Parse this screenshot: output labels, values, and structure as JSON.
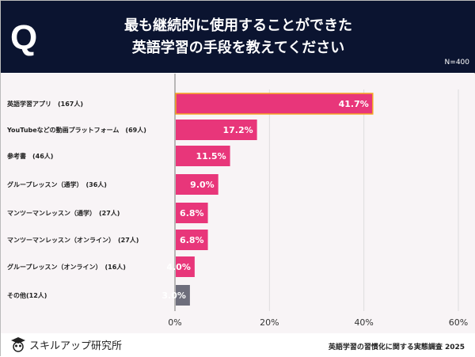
{
  "header": {
    "q_mark": "Q",
    "title_line1": "最も継続的に使用することができた",
    "title_line2": "英語学習の手段を教えてください",
    "sample": "N=400"
  },
  "chart_data": {
    "type": "bar",
    "orientation": "horizontal",
    "categories": [
      "英語学習アプリ　(167人)",
      "YouTubeなどの動画プラットフォーム　(69人)",
      "参考書　(46人)",
      "グループレッスン（通学）　(36人)",
      "マンツーマンレッスン（通学）　(27人)",
      "マンツーマンレッスン（オンライン）　(27人)",
      "グループレッスン（オンライン）　(16人)",
      "その他(12人)"
    ],
    "values": [
      41.7,
      17.2,
      11.5,
      9.0,
      6.8,
      6.8,
      4.0,
      3.0
    ],
    "value_labels": [
      "41.7%",
      "17.2%",
      "11.5%",
      "9.0%",
      "6.8%",
      "6.8%",
      "4.0%",
      "3.0%"
    ],
    "xlim": [
      0,
      60
    ],
    "x_ticks": [
      "0%",
      "20%",
      "40%",
      "60%"
    ],
    "grid": true,
    "colors": {
      "bar": "#e8367a",
      "other": "#6e6e7c",
      "highlight_border": "#f5a623"
    }
  },
  "footer": {
    "brand": "スキルアップ研究所",
    "source": "英語学習の習慣化に関する実態調査 2025"
  }
}
